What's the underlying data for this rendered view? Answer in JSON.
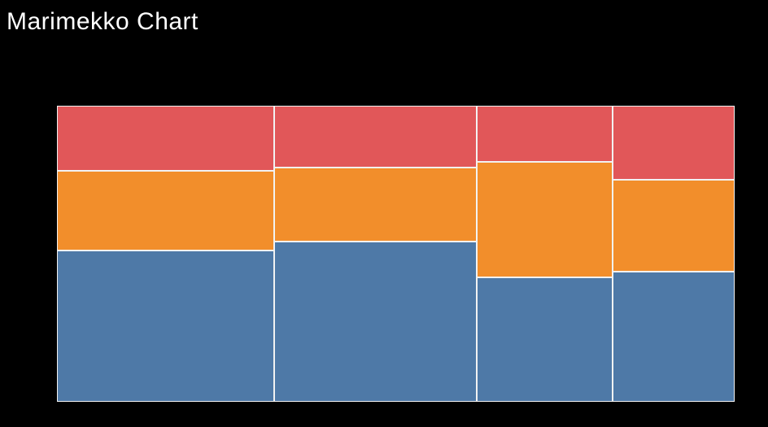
{
  "page": {
    "title": "Marimekko Chart",
    "background_color": "#000000",
    "title_color": "#ffffff"
  },
  "chart_data": {
    "type": "bar",
    "variant": "marimekko",
    "title": "Marimekko Chart",
    "legend": false,
    "axes_visible": false,
    "grid": false,
    "x_axis_unit": "percent-of-total-width",
    "y_axis_unit": "percent-of-column-height",
    "series_colors": {
      "top": "#e15759",
      "middle": "#f28e2b",
      "bottom": "#4e79a7"
    },
    "columns": [
      {
        "width_pct": 32,
        "segments": [
          {
            "series": "top",
            "color": "#e15759",
            "height_pct": 22
          },
          {
            "series": "middle",
            "color": "#f28e2b",
            "height_pct": 27
          },
          {
            "series": "bottom",
            "color": "#4e79a7",
            "height_pct": 51
          }
        ]
      },
      {
        "width_pct": 30,
        "segments": [
          {
            "series": "top",
            "color": "#e15759",
            "height_pct": 21
          },
          {
            "series": "middle",
            "color": "#f28e2b",
            "height_pct": 25
          },
          {
            "series": "bottom",
            "color": "#4e79a7",
            "height_pct": 54
          }
        ]
      },
      {
        "width_pct": 20,
        "segments": [
          {
            "series": "top",
            "color": "#e15759",
            "height_pct": 19
          },
          {
            "series": "middle",
            "color": "#f28e2b",
            "height_pct": 39
          },
          {
            "series": "bottom",
            "color": "#4e79a7",
            "height_pct": 42
          }
        ]
      },
      {
        "width_pct": 18,
        "segments": [
          {
            "series": "top",
            "color": "#e15759",
            "height_pct": 25
          },
          {
            "series": "middle",
            "color": "#f28e2b",
            "height_pct": 31
          },
          {
            "series": "bottom",
            "color": "#4e79a7",
            "height_pct": 44
          }
        ]
      }
    ]
  }
}
